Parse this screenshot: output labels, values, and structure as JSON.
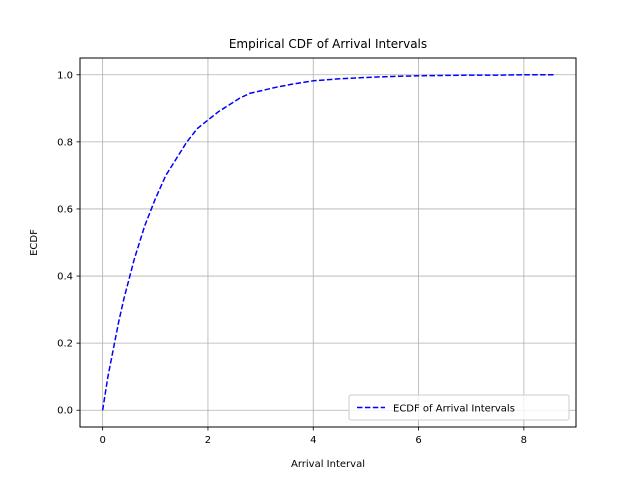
{
  "chart_data": {
    "type": "line",
    "title": "Empirical CDF of Arrival Intervals",
    "xlabel": "Arrival Interval",
    "ylabel": "ECDF",
    "xlim": [
      -0.43,
      8.99
    ],
    "ylim": [
      -0.05,
      1.05
    ],
    "xticks": [
      0,
      2,
      4,
      6,
      8
    ],
    "yticks": [
      0.0,
      0.2,
      0.4,
      0.6,
      0.8,
      1.0
    ],
    "xtick_labels": [
      "0",
      "2",
      "4",
      "6",
      "8"
    ],
    "ytick_labels": [
      "0.0",
      "0.2",
      "0.4",
      "0.6",
      "0.8",
      "1.0"
    ],
    "grid": true,
    "legend_position": "lower-right",
    "series": [
      {
        "name": "ECDF of Arrival Intervals",
        "color": "#0000ff",
        "linestyle": "dashed",
        "x": [
          0,
          0.1,
          0.2,
          0.3,
          0.4,
          0.5,
          0.6,
          0.7,
          0.8,
          0.9,
          1.0,
          1.2,
          1.4,
          1.6,
          1.8,
          2.0,
          2.2,
          2.4,
          2.6,
          2.8,
          3.0,
          3.3,
          3.6,
          4.0,
          4.5,
          5.0,
          5.5,
          6.0,
          6.5,
          7.0,
          7.5,
          8.0,
          8.6
        ],
        "y": [
          0.0,
          0.1,
          0.18,
          0.26,
          0.33,
          0.39,
          0.45,
          0.5,
          0.55,
          0.59,
          0.63,
          0.7,
          0.75,
          0.8,
          0.84,
          0.865,
          0.89,
          0.91,
          0.93,
          0.945,
          0.952,
          0.963,
          0.972,
          0.982,
          0.988,
          0.992,
          0.995,
          0.997,
          0.998,
          0.999,
          0.999,
          1.0,
          1.0
        ]
      }
    ]
  }
}
